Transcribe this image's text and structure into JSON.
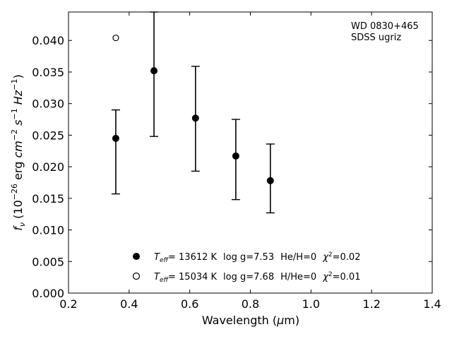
{
  "chart_data": {
    "type": "scatter",
    "xlabel": "Wavelength (μm)",
    "ylabel": "f_ν (10^-26 erg cm^-2 s^-1 Hz^-1)",
    "xlim": [
      0.2,
      1.4
    ],
    "ylim": [
      0.0,
      0.0445
    ],
    "x_ticks": [
      0.2,
      0.4,
      0.6,
      0.8,
      1.0,
      1.2,
      1.4
    ],
    "x_tick_labels": [
      "0.2",
      "0.4",
      "0.6",
      "0.8",
      "1.0",
      "1.2",
      "1.4"
    ],
    "y_ticks": [
      0.0,
      0.005,
      0.01,
      0.015,
      0.02,
      0.025,
      0.03,
      0.035,
      0.04
    ],
    "y_tick_labels": [
      "0.000",
      "0.005",
      "0.010",
      "0.015",
      "0.020",
      "0.025",
      "0.030",
      "0.035",
      "0.040"
    ],
    "grid": false,
    "legend_position": "lower-center",
    "annotation": [
      "WD 0830+465",
      "SDSS ugriz"
    ],
    "series": [
      {
        "marker": "filled-circle",
        "label_parts": {
          "teff_value": "= 13612 K",
          "logg": "log g=7.53",
          "comp": "He/H=0",
          "chi2_value": "=0.02"
        },
        "points": [
          {
            "x": 0.356,
            "y": 0.0245,
            "ylow": 0.0157,
            "yhigh": 0.029
          },
          {
            "x": 0.482,
            "y": 0.0352,
            "ylow": 0.0248,
            "yhigh": 0.0445
          },
          {
            "x": 0.619,
            "y": 0.0277,
            "ylow": 0.0193,
            "yhigh": 0.0359
          },
          {
            "x": 0.752,
            "y": 0.0217,
            "ylow": 0.0148,
            "yhigh": 0.0275
          },
          {
            "x": 0.866,
            "y": 0.0178,
            "ylow": 0.0127,
            "yhigh": 0.0236
          }
        ]
      },
      {
        "marker": "open-circle",
        "label_parts": {
          "teff_value": "= 15034 K",
          "logg": "log g=7.68",
          "comp": "H/He=0",
          "chi2_value": "=0.01"
        },
        "points": [
          {
            "x": 0.356,
            "y": 0.0404
          }
        ]
      }
    ],
    "colors": {
      "marker": "#000000",
      "background": "#ffffff"
    }
  }
}
